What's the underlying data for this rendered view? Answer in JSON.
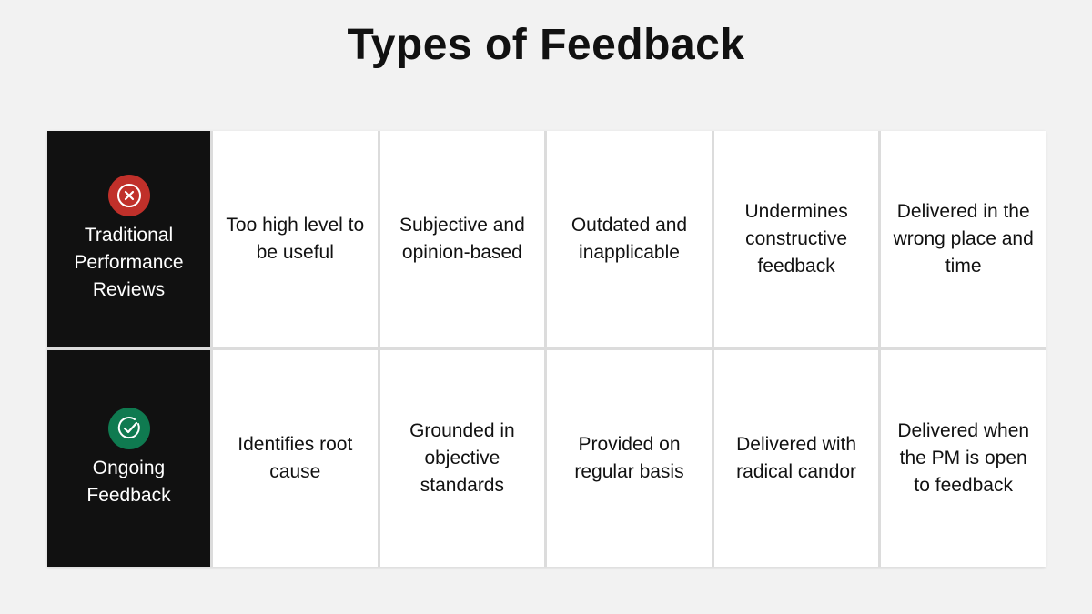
{
  "title": "Types of Feedback",
  "colors": {
    "negative": "#c0302a",
    "positive": "#0f7a50",
    "header_bg": "#111111"
  },
  "rows": [
    {
      "label": "Traditional Performance Reviews",
      "icon": "x-circle-icon",
      "cells": [
        "Too high level to be useful",
        "Subjective and opinion-based",
        "Outdated and inapplicable",
        "Undermines constructive feedback",
        "Delivered in the wrong place and time"
      ]
    },
    {
      "label": "Ongoing Feedback",
      "icon": "check-circle-icon",
      "cells": [
        "Identifies root cause",
        "Grounded in objective standards",
        "Provided on regular basis",
        "Delivered with radical candor",
        "Delivered when the PM is open to feedback"
      ]
    }
  ]
}
